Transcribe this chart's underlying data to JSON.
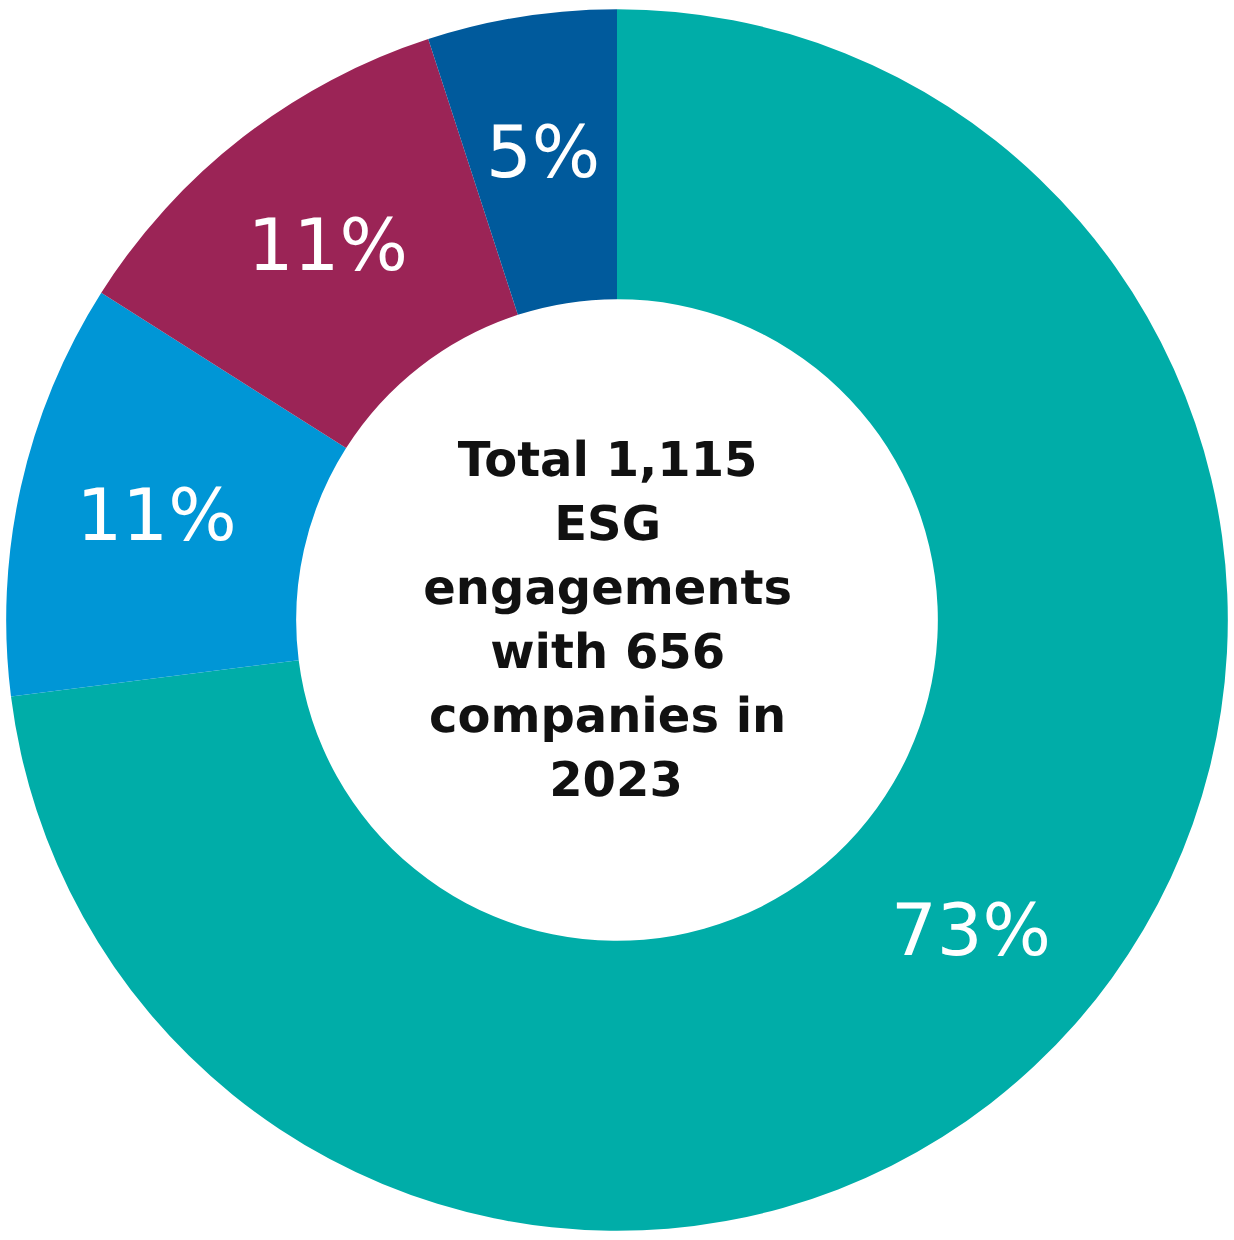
{
  "chart_data": {
    "type": "donut",
    "title": "Total 1,115 ESG engagements with 656 companies in 2023",
    "categories": [
      null,
      null,
      null,
      null
    ],
    "values": [
      73,
      11,
      11,
      5
    ],
    "value_labels": [
      "73%",
      "11%",
      "11%",
      "5%"
    ],
    "colors": [
      "#00ada8",
      "#0096d6",
      "#9b2456",
      "#005a9c"
    ]
  }
}
